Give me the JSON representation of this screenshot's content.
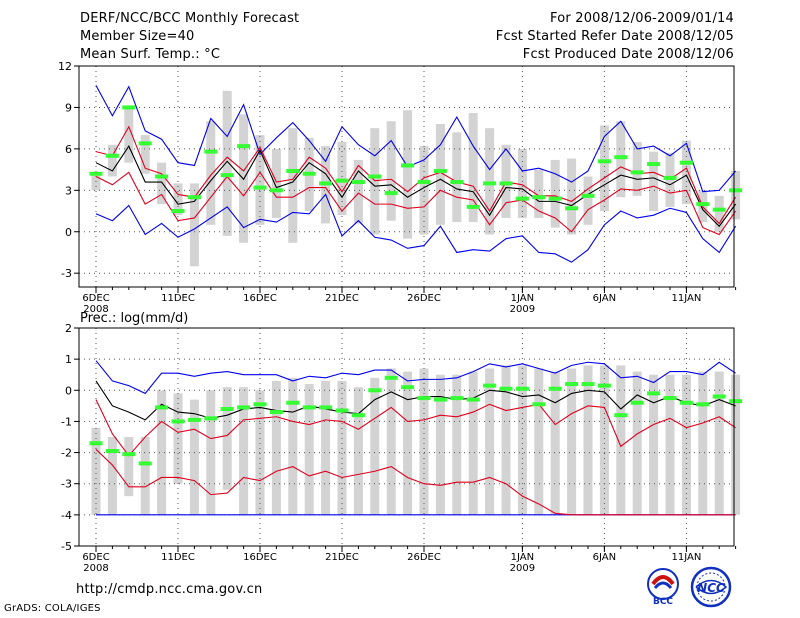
{
  "header": {
    "title": "DERF/NCC/BCC Monthly Forecast",
    "member_size": "Member Size=40",
    "variable": "Mean Surf. Temp.: °C",
    "period": "For 2008/12/06-2009/01/14",
    "started": "Fcst Started Refer Date 2008/12/05",
    "produced": "Fcst Produced Date 2008/12/06"
  },
  "footer": {
    "url": "http://cmdp.ncc.cma.gov.cn",
    "credit": "GrADS: COLA/IGES",
    "logo_bcc": "BCC",
    "logo_ncc": "NCC"
  },
  "colors": {
    "box": "#d3d3d3",
    "median": "#33ff33",
    "mean": "#000000",
    "inner": "#e0001e",
    "outer": "#0000ee",
    "grid": "#555555"
  },
  "chart_data": [
    {
      "type": "box-spread",
      "title": "Mean Surf. Temp.: °C",
      "ylim": [
        -4,
        12
      ],
      "yticks": [
        -3,
        0,
        3,
        6,
        9,
        12
      ],
      "days": 40,
      "xticks": [
        {
          "day": 0,
          "label": "6DEC",
          "year": "2008"
        },
        {
          "day": 5,
          "label": "11DEC"
        },
        {
          "day": 10,
          "label": "16DEC"
        },
        {
          "day": 15,
          "label": "21DEC"
        },
        {
          "day": 20,
          "label": "26DEC"
        },
        {
          "day": 26,
          "label": "1JAN",
          "year": "2009"
        },
        {
          "day": 31,
          "label": "6JAN"
        },
        {
          "day": 36,
          "label": "11JAN"
        }
      ],
      "box_low": [
        3.0,
        4.0,
        5.0,
        4.2,
        2.0,
        1.2,
        -2.5,
        0.5,
        -0.3,
        -0.8,
        0.5,
        1.0,
        -0.8,
        1.5,
        0.6,
        1.2,
        0.6,
        -0.2,
        0.8,
        -0.5,
        -0.2,
        0.5,
        0.7,
        0.7,
        -0.2,
        1.0,
        1.0,
        1.0,
        0.3,
        -0.2,
        0.5,
        1.5,
        2.5,
        2.6,
        1.5,
        1.8,
        2.0,
        0.7,
        0.0,
        0.9
      ],
      "box_high": [
        4.2,
        6.3,
        9.0,
        7.0,
        5.0,
        3.5,
        3.5,
        8.0,
        10.2,
        8.5,
        7.0,
        6.0,
        7.5,
        6.8,
        6.2,
        6.5,
        5.2,
        7.5,
        8.0,
        8.8,
        6.2,
        7.8,
        7.2,
        8.6,
        7.5,
        6.3,
        6.0,
        4.5,
        5.2,
        5.3,
        4.0,
        7.7,
        8.0,
        6.5,
        5.8,
        5.7,
        6.6,
        3.0,
        2.6,
        4.4
      ],
      "median": [
        4.2,
        5.5,
        9.0,
        6.4,
        4.0,
        1.5,
        2.5,
        5.8,
        4.1,
        6.2,
        3.2,
        3.0,
        4.4,
        4.2,
        3.5,
        3.7,
        3.6,
        4.0,
        2.8,
        4.8,
        3.6,
        4.4,
        3.6,
        1.8,
        3.5,
        3.5,
        2.4,
        2.5,
        2.4,
        1.7,
        2.6,
        5.1,
        5.4,
        4.3,
        4.9,
        3.9,
        5.0,
        2.0,
        1.6,
        3.0
      ],
      "outer_high": [
        10.6,
        8.4,
        10.5,
        7.3,
        6.7,
        5.0,
        4.8,
        8.2,
        6.9,
        9.2,
        5.6,
        6.8,
        7.9,
        6.6,
        5.1,
        7.6,
        6.3,
        5.5,
        6.6,
        4.7,
        5.2,
        6.3,
        8.3,
        6.2,
        4.5,
        6.0,
        4.4,
        4.6,
        4.2,
        3.6,
        4.4,
        6.9,
        8.0,
        6.0,
        6.2,
        5.5,
        6.4,
        2.9,
        3.0,
        4.4
      ],
      "inner_high": [
        5.8,
        5.5,
        7.6,
        4.6,
        4.2,
        2.7,
        2.5,
        4.1,
        5.4,
        4.4,
        6.1,
        3.6,
        3.8,
        5.4,
        4.6,
        2.9,
        4.8,
        3.7,
        3.8,
        2.9,
        3.9,
        4.3,
        3.6,
        3.3,
        1.5,
        3.6,
        3.4,
        2.6,
        2.6,
        2.2,
        3.1,
        3.9,
        4.7,
        4.2,
        4.3,
        3.8,
        4.6,
        1.8,
        0.6,
        2.5
      ],
      "mean": [
        5.0,
        4.4,
        6.2,
        3.6,
        3.6,
        2.0,
        2.2,
        3.7,
        5.1,
        3.8,
        5.9,
        3.2,
        3.6,
        5.0,
        4.2,
        2.5,
        4.4,
        3.3,
        3.4,
        2.5,
        3.2,
        3.8,
        3.1,
        2.9,
        1.2,
        3.2,
        3.1,
        2.2,
        2.2,
        1.9,
        2.7,
        3.4,
        4.1,
        3.8,
        3.9,
        3.4,
        4.1,
        1.6,
        0.4,
        2.0
      ],
      "inner_low": [
        4.0,
        3.4,
        4.3,
        2.0,
        2.7,
        0.8,
        1.0,
        2.5,
        4.0,
        2.6,
        4.3,
        2.5,
        2.5,
        3.2,
        3.2,
        1.5,
        2.8,
        2.0,
        2.0,
        1.7,
        1.8,
        3.0,
        2.5,
        2.3,
        0.5,
        2.1,
        2.3,
        1.5,
        1.0,
        0.0,
        1.6,
        2.3,
        3.1,
        3.0,
        3.3,
        2.8,
        3.0,
        0.3,
        -0.2,
        1.5
      ],
      "outer_low": [
        1.3,
        0.8,
        1.9,
        -0.2,
        0.6,
        -0.4,
        0.2,
        1.0,
        1.8,
        0.3,
        0.9,
        0.7,
        1.4,
        1.3,
        2.7,
        -0.3,
        0.8,
        -0.4,
        -0.6,
        -1.2,
        -1.0,
        0.4,
        -1.5,
        -1.3,
        -1.4,
        -0.5,
        -0.3,
        -1.5,
        -1.6,
        -2.2,
        -1.3,
        0.5,
        1.5,
        1.0,
        1.2,
        1.7,
        1.4,
        -0.5,
        -1.5,
        0.4
      ]
    },
    {
      "type": "box-spread",
      "title": "Prec.: log(mm/d)",
      "ylim": [
        -5,
        2
      ],
      "yticks": [
        -5,
        -4,
        -3,
        -2,
        -1,
        0,
        1,
        2
      ],
      "days": 40,
      "xticks": [
        {
          "day": 0,
          "label": "6DEC",
          "year": "2008"
        },
        {
          "day": 5,
          "label": "11DEC"
        },
        {
          "day": 10,
          "label": "16DEC"
        },
        {
          "day": 15,
          "label": "21DEC"
        },
        {
          "day": 20,
          "label": "26DEC"
        },
        {
          "day": 26,
          "label": "1JAN",
          "year": "2009"
        },
        {
          "day": 31,
          "label": "6JAN"
        },
        {
          "day": 36,
          "label": "11JAN"
        }
      ],
      "box_low": [
        -4,
        -4,
        -3.4,
        -4,
        -4,
        -3.0,
        -4,
        -4,
        -3.2,
        -4,
        -4,
        -4,
        -4,
        -4,
        -4,
        -4,
        -4,
        -4,
        -4,
        -4,
        -4,
        -4,
        -4,
        -4,
        -4,
        -4,
        -4,
        -4,
        -4,
        -4,
        -4,
        -4,
        -4,
        -4,
        -4,
        -4,
        -4,
        -4,
        -4,
        -4
      ],
      "box_high": [
        -1.2,
        -1.5,
        -1.5,
        -1.5,
        0.0,
        -0.1,
        -0.3,
        0.0,
        0.1,
        0.1,
        0.0,
        0.3,
        0.4,
        0.2,
        0.3,
        0.3,
        0.1,
        0.4,
        0.7,
        0.6,
        0.7,
        0.5,
        0.5,
        0.6,
        0.7,
        0.8,
        0.8,
        0.7,
        0.6,
        0.7,
        0.8,
        0.8,
        0.8,
        0.6,
        0.5,
        0.5,
        0.5,
        0.6,
        0.6,
        0.5
      ],
      "median": [
        -1.7,
        -1.95,
        -2.05,
        -2.35,
        -0.55,
        -1.0,
        -0.95,
        -0.9,
        -0.6,
        -0.55,
        -0.45,
        -0.7,
        -0.4,
        -0.55,
        -0.55,
        -0.65,
        -0.8,
        0.0,
        0.4,
        0.1,
        -0.25,
        -0.3,
        -0.25,
        -0.3,
        0.15,
        0.05,
        0.05,
        -0.45,
        0.05,
        0.2,
        0.2,
        0.15,
        -0.8,
        -0.4,
        -0.1,
        -0.25,
        -0.4,
        -0.45,
        -0.2,
        -0.35
      ],
      "outer_high": [
        0.95,
        0.3,
        0.15,
        -0.1,
        0.55,
        0.55,
        0.45,
        0.55,
        0.6,
        0.5,
        0.5,
        0.5,
        0.3,
        0.45,
        0.4,
        0.55,
        0.5,
        0.65,
        0.65,
        0.3,
        0.35,
        0.35,
        0.4,
        0.6,
        0.85,
        0.75,
        0.85,
        0.7,
        0.55,
        0.8,
        0.9,
        0.85,
        0.4,
        0.45,
        0.25,
        0.6,
        0.6,
        0.5,
        0.9,
        0.55
      ],
      "mean": [
        0.3,
        -0.5,
        -0.7,
        -0.95,
        -0.45,
        -0.7,
        -0.75,
        -0.9,
        -0.8,
        -0.6,
        -0.55,
        -0.65,
        -0.7,
        -0.5,
        -0.6,
        -0.7,
        -0.75,
        -0.3,
        -0.05,
        -0.3,
        -0.2,
        -0.2,
        -0.3,
        -0.25,
        0.0,
        -0.05,
        -0.2,
        -0.15,
        -0.4,
        -0.1,
        0.0,
        -0.05,
        -0.6,
        -0.15,
        -0.4,
        -0.2,
        -0.4,
        -0.5,
        -0.3,
        -0.5
      ],
      "inner_high": [
        -0.3,
        -1.4,
        -2.1,
        -1.5,
        -1.0,
        -1.35,
        -1.25,
        -1.55,
        -1.45,
        -0.95,
        -0.9,
        -0.85,
        -1.0,
        -1.1,
        -0.95,
        -1.0,
        -1.25,
        -0.9,
        -0.55,
        -1.0,
        -0.95,
        -0.8,
        -0.85,
        -0.7,
        -0.45,
        -0.65,
        -0.55,
        -0.45,
        -1.1,
        -0.75,
        -0.5,
        -0.55,
        -1.8,
        -1.4,
        -1.1,
        -0.9,
        -1.2,
        -1.05,
        -0.85,
        -1.2
      ],
      "inner_low": [
        -1.9,
        -2.4,
        -3.1,
        -3.1,
        -2.8,
        -2.8,
        -2.9,
        -3.35,
        -3.3,
        -2.8,
        -2.9,
        -2.6,
        -2.45,
        -2.75,
        -2.6,
        -2.8,
        -2.7,
        -2.6,
        -2.45,
        -2.8,
        -3.0,
        -3.05,
        -2.95,
        -2.95,
        -2.8,
        -3.0,
        -3.4,
        -3.65,
        -3.95,
        -4.0,
        -4.0,
        -4.0,
        -4.0,
        -4.0,
        -4.0,
        -4.0,
        -4.0,
        -4.0,
        -4.0,
        -4.0
      ],
      "outer_low": [
        -4,
        -4,
        -4,
        -4,
        -4,
        -4,
        -4,
        -4,
        -4,
        -4,
        -4,
        -4,
        -4,
        -4,
        -4,
        -4,
        -4,
        -4,
        -4,
        -4,
        -4,
        -4,
        -4,
        -4,
        -4,
        -4,
        -4,
        -4,
        -4,
        -4,
        -4,
        -4,
        -4,
        -4,
        -4,
        -4,
        -4,
        -4,
        -4,
        -4
      ]
    }
  ]
}
